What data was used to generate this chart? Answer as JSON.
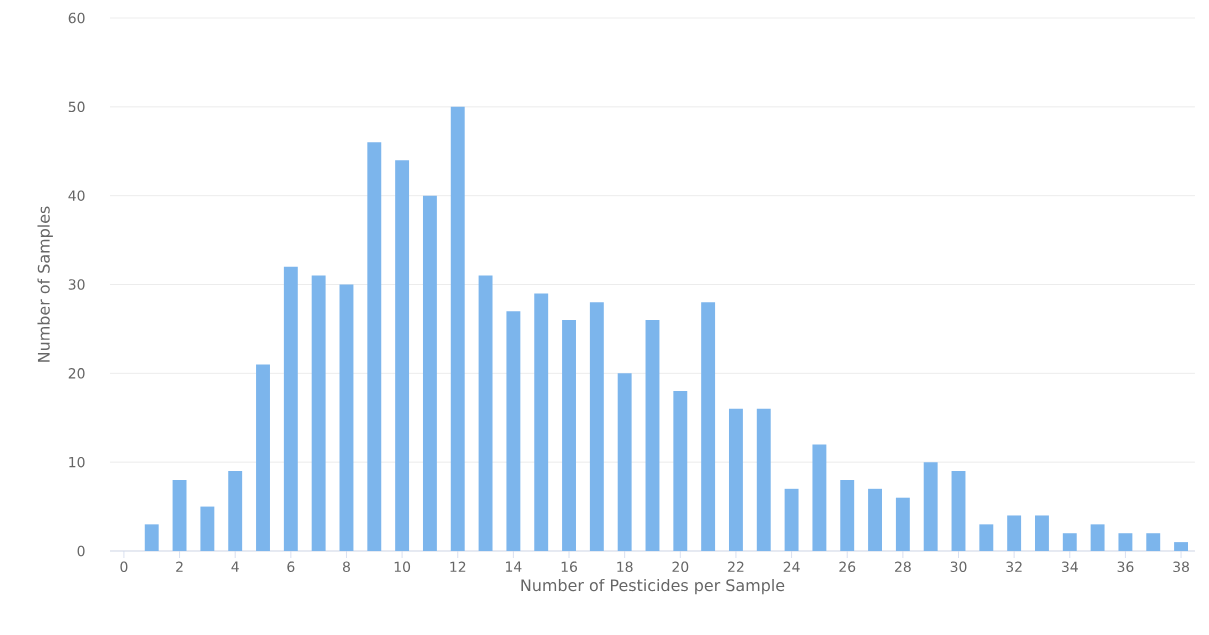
{
  "chart_data": {
    "type": "bar",
    "xlabel": "Number of Pesticides per Sample",
    "ylabel": "Number of Samples",
    "x": [
      1,
      2,
      3,
      4,
      5,
      6,
      7,
      8,
      9,
      10,
      11,
      12,
      13,
      14,
      15,
      16,
      17,
      18,
      19,
      20,
      21,
      22,
      23,
      24,
      25,
      26,
      27,
      28,
      29,
      30,
      31,
      32,
      33,
      34,
      35,
      36,
      37,
      38
    ],
    "values": [
      3,
      8,
      5,
      9,
      21,
      32,
      31,
      30,
      46,
      44,
      40,
      50,
      31,
      27,
      29,
      26,
      28,
      20,
      26,
      18,
      28,
      16,
      16,
      7,
      12,
      8,
      7,
      6,
      10,
      9,
      3,
      4,
      4,
      2,
      3,
      2,
      2,
      1
    ],
    "color": "#7cb5ec",
    "xlim": [
      -0.5,
      38.5
    ],
    "ylim": [
      0,
      60
    ],
    "xticks": [
      0,
      2,
      4,
      6,
      8,
      10,
      12,
      14,
      16,
      18,
      20,
      22,
      24,
      26,
      28,
      30,
      32,
      34,
      36,
      38
    ],
    "yticks": [
      0,
      10,
      20,
      30,
      40,
      50,
      60
    ],
    "grid": "y"
  }
}
